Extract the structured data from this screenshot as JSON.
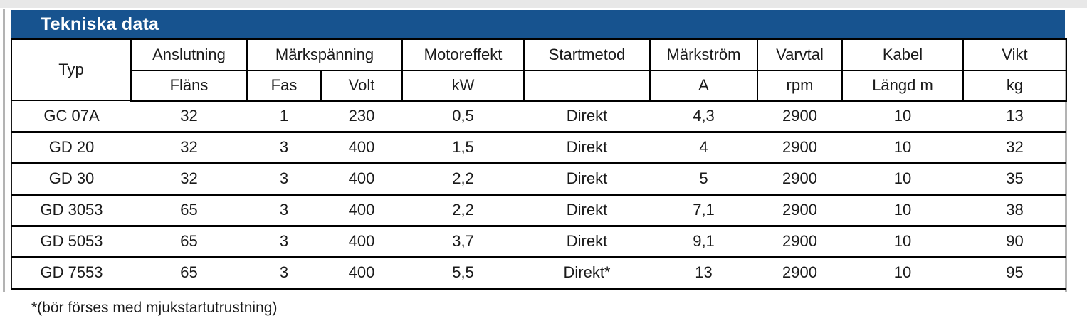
{
  "title_bar": {
    "title": "Tekniska data"
  },
  "colors": {
    "header_bar": "#17538f",
    "border": "#000000",
    "text": "#1a1a1a",
    "top_strip": "#e8e8e8",
    "edge_shadow": "#b3b3b3"
  },
  "table": {
    "header": {
      "typ": "Typ",
      "anslutning": "Anslutning",
      "anslutning_sub": "Fläns",
      "markspanning": "Märkspänning",
      "fas": "Fas",
      "volt": "Volt",
      "motoreffekt": "Motoreffekt",
      "kw": "kW",
      "startmetod": "Startmetod",
      "startmetod_sub": "",
      "markstrom": "Märkström",
      "a": "A",
      "varvtal": "Varvtal",
      "rpm": "rpm",
      "kabel": "Kabel",
      "langd_m": "Längd m",
      "vikt": "Vikt",
      "kg": "kg"
    },
    "col_keys": [
      "typ",
      "flans",
      "fas",
      "volt",
      "kw",
      "startmetod",
      "markstrom",
      "varvtal",
      "kabel",
      "vikt"
    ],
    "rows": [
      [
        "GC 07A",
        "32",
        "1",
        "230",
        "0,5",
        "Direkt",
        "4,3",
        "2900",
        "10",
        "13"
      ],
      [
        "GD 20",
        "32",
        "3",
        "400",
        "1,5",
        "Direkt",
        "4",
        "2900",
        "10",
        "32"
      ],
      [
        "GD 30",
        "32",
        "3",
        "400",
        "2,2",
        "Direkt",
        "5",
        "2900",
        "10",
        "35"
      ],
      [
        "GD 3053",
        "65",
        "3",
        "400",
        "2,2",
        "Direkt",
        "7,1",
        "2900",
        "10",
        "38"
      ],
      [
        "GD 5053",
        "65",
        "3",
        "400",
        "3,7",
        "Direkt",
        "9,1",
        "2900",
        "10",
        "90"
      ],
      [
        "GD 7553",
        "65",
        "3",
        "400",
        "5,5",
        "Direkt*",
        "13",
        "2900",
        "10",
        "95"
      ]
    ]
  },
  "footnote": "*(bör förses med mjukstartutrustning)"
}
